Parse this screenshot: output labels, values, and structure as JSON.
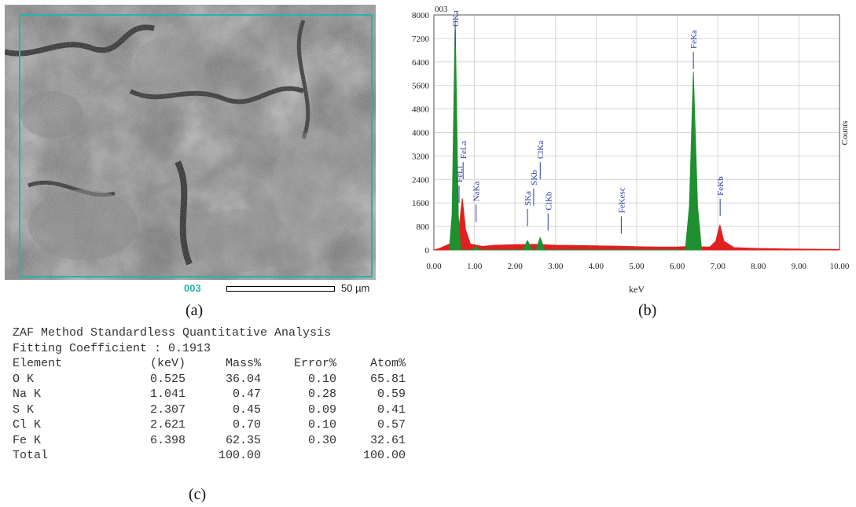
{
  "panels": {
    "a": {
      "caption": "(a)",
      "image_label": "003",
      "scale_label": "50 µm"
    },
    "b": {
      "caption": "(b)"
    },
    "c": {
      "caption": "(c)"
    }
  },
  "chart_data": {
    "type": "line",
    "title": "003",
    "xlabel": "keV",
    "ylabel": "Counts",
    "xlim": [
      0,
      10
    ],
    "ylim": [
      0,
      8000
    ],
    "x_ticks": [
      "0.00",
      "1.00",
      "2.00",
      "3.00",
      "4.00",
      "5.00",
      "6.00",
      "7.00",
      "8.00",
      "9.00",
      "10.00"
    ],
    "y_ticks": [
      "0",
      "800",
      "1600",
      "2400",
      "3200",
      "4000",
      "4800",
      "5600",
      "6400",
      "7200",
      "8000"
    ],
    "grid": true,
    "series": [
      {
        "color": "#e02020",
        "values": [
          {
            "x": 0.0,
            "y": 0
          },
          {
            "x": 0.15,
            "y": 60
          },
          {
            "x": 0.3,
            "y": 150
          },
          {
            "x": 0.45,
            "y": 250
          },
          {
            "x": 0.6,
            "y": 500
          },
          {
            "x": 0.7,
            "y": 1750
          },
          {
            "x": 0.78,
            "y": 700
          },
          {
            "x": 0.9,
            "y": 200
          },
          {
            "x": 1.2,
            "y": 120
          },
          {
            "x": 1.5,
            "y": 160
          },
          {
            "x": 2.0,
            "y": 180
          },
          {
            "x": 2.5,
            "y": 190
          },
          {
            "x": 3.0,
            "y": 160
          },
          {
            "x": 3.5,
            "y": 150
          },
          {
            "x": 4.0,
            "y": 140
          },
          {
            "x": 4.5,
            "y": 130
          },
          {
            "x": 5.0,
            "y": 110
          },
          {
            "x": 5.5,
            "y": 100
          },
          {
            "x": 6.0,
            "y": 100
          },
          {
            "x": 6.3,
            "y": 120
          },
          {
            "x": 6.5,
            "y": 110
          },
          {
            "x": 6.8,
            "y": 100
          },
          {
            "x": 6.95,
            "y": 300
          },
          {
            "x": 7.05,
            "y": 850
          },
          {
            "x": 7.15,
            "y": 300
          },
          {
            "x": 7.4,
            "y": 80
          },
          {
            "x": 8.0,
            "y": 50
          },
          {
            "x": 9.0,
            "y": 30
          },
          {
            "x": 10.0,
            "y": 15
          }
        ]
      },
      {
        "color": "#1f8f2f",
        "values": [
          {
            "x": 0.38,
            "y": 0
          },
          {
            "x": 0.45,
            "y": 1200
          },
          {
            "x": 0.525,
            "y": 7800
          },
          {
            "x": 0.6,
            "y": 1200
          },
          {
            "x": 0.66,
            "y": 0
          },
          {
            "x": 0.95,
            "y": 0
          },
          {
            "x": 1.041,
            "y": 110
          },
          {
            "x": 1.13,
            "y": 0
          },
          {
            "x": 2.2,
            "y": 0
          },
          {
            "x": 2.307,
            "y": 320
          },
          {
            "x": 2.42,
            "y": 0
          },
          {
            "x": 2.52,
            "y": 0
          },
          {
            "x": 2.621,
            "y": 420
          },
          {
            "x": 2.73,
            "y": 0
          },
          {
            "x": 6.2,
            "y": 0
          },
          {
            "x": 6.3,
            "y": 1500
          },
          {
            "x": 6.398,
            "y": 6050
          },
          {
            "x": 6.5,
            "y": 1500
          },
          {
            "x": 6.6,
            "y": 0
          }
        ]
      }
    ],
    "peak_labels": [
      {
        "label": "OKa",
        "x": 0.525,
        "y": 7600
      },
      {
        "label": "FeLl",
        "x": 0.62,
        "y": 2300
      },
      {
        "label": "FeLa",
        "x": 0.72,
        "y": 3100
      },
      {
        "label": "NaKa",
        "x": 1.041,
        "y": 1650
      },
      {
        "label": "SKa",
        "x": 2.307,
        "y": 1500
      },
      {
        "label": "SKb",
        "x": 2.46,
        "y": 2200
      },
      {
        "label": "ClKa",
        "x": 2.621,
        "y": 3100
      },
      {
        "label": "ClKb",
        "x": 2.815,
        "y": 1350
      },
      {
        "label": "FeKesc",
        "x": 4.62,
        "y": 1250
      },
      {
        "label": "FeKa",
        "x": 6.398,
        "y": 6850
      },
      {
        "label": "FeKb",
        "x": 7.057,
        "y": 1850
      }
    ]
  },
  "zaf": {
    "title": "ZAF Method Standardless Quantitative Analysis",
    "fitting": "Fitting Coefficient : 0.1913",
    "headers": [
      "Element",
      "(keV)",
      "Mass%",
      "Error%",
      "Atom%"
    ],
    "rows": [
      [
        "O K",
        "0.525",
        "36.04",
        "0.10",
        "65.81"
      ],
      [
        "Na K",
        "1.041",
        "0.47",
        "0.28",
        "0.59"
      ],
      [
        "S K",
        "2.307",
        "0.45",
        "0.09",
        "0.41"
      ],
      [
        "Cl K",
        "2.621",
        "0.70",
        "0.10",
        "0.57"
      ],
      [
        "Fe K",
        "6.398",
        "62.35",
        "0.30",
        "32.61"
      ]
    ],
    "total": [
      "Total",
      "",
      "100.00",
      "",
      "100.00"
    ]
  }
}
